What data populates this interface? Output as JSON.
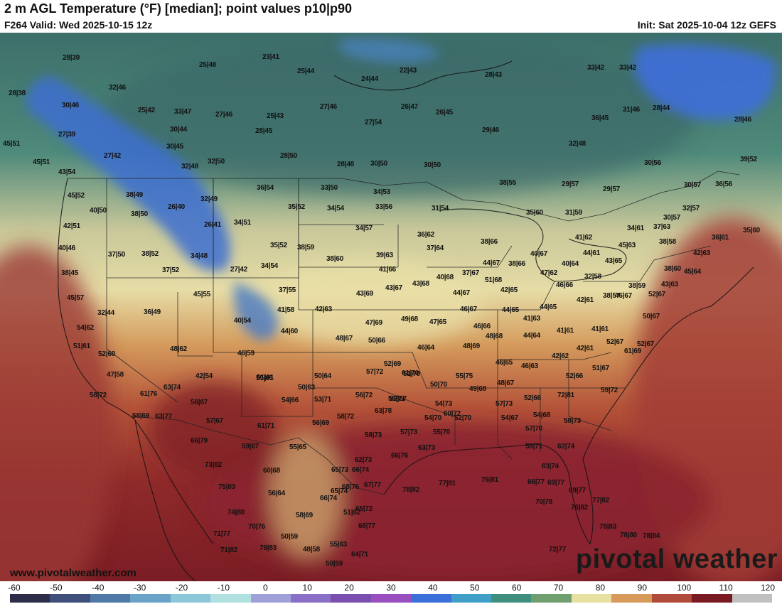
{
  "header": {
    "title": "2 m AGL Temperature (°F) [median]; point values p10|p90",
    "valid": "F264 Valid: Wed 2025-10-15 12z",
    "init": "Init: Sat 2025-10-04 12z GEFS"
  },
  "footer": {
    "website": "www.pivotalweather.com",
    "brand": "pivotal weather"
  },
  "colorbar": {
    "ticks": [
      "-60",
      "-50",
      "-40",
      "-30",
      "-20",
      "-10",
      "0",
      "10",
      "20",
      "30",
      "40",
      "50",
      "60",
      "70",
      "80",
      "90",
      "100",
      "110",
      "120"
    ],
    "range": [
      -60,
      120
    ],
    "colors": [
      "#2d2d4a",
      "#3d4f7a",
      "#4f7aa8",
      "#6aa3c8",
      "#8cc7d9",
      "#b0e0e0",
      "#a0a0d8",
      "#8a6fc8",
      "#7b4fb0",
      "#9a4fc0",
      "#3b6fd9",
      "#3f9fc9",
      "#3f8f7f",
      "#6f9f6f",
      "#e8e0a0",
      "#d89a5a",
      "#b04a3a",
      "#7a1a22",
      "#c0c0c0"
    ]
  },
  "point_values": [
    {
      "t": "28|39"
    },
    {
      "t": "25|48"
    },
    {
      "t": "23|41"
    },
    {
      "t": "28|38"
    },
    {
      "t": "32|46"
    },
    {
      "t": "25|44"
    },
    {
      "t": "22|43"
    },
    {
      "t": "28|43"
    },
    {
      "t": "33|42"
    },
    {
      "t": "33|42"
    },
    {
      "t": "24|44"
    },
    {
      "t": "30|46"
    },
    {
      "t": "25|42"
    },
    {
      "t": "33|47"
    },
    {
      "t": "27|46"
    },
    {
      "t": "25|43"
    },
    {
      "t": "27|46"
    },
    {
      "t": "26|47"
    },
    {
      "t": "26|45"
    },
    {
      "t": "31|46"
    },
    {
      "t": "28|44"
    },
    {
      "t": "27|54"
    },
    {
      "t": "36|45"
    },
    {
      "t": "28|46"
    },
    {
      "t": "27|39"
    },
    {
      "t": "30|44"
    },
    {
      "t": "28|45"
    },
    {
      "t": "29|46"
    },
    {
      "t": "45|51"
    },
    {
      "t": "30|45"
    },
    {
      "t": "32|48"
    },
    {
      "t": "27|42"
    },
    {
      "t": "28|50"
    },
    {
      "t": "45|51"
    },
    {
      "t": "32|48"
    },
    {
      "t": "32|50"
    },
    {
      "t": "28|48"
    },
    {
      "t": "30|50"
    },
    {
      "t": "30|50"
    },
    {
      "t": "30|56"
    },
    {
      "t": "39|52"
    },
    {
      "t": "43|54"
    },
    {
      "t": "38|55"
    },
    {
      "t": "29|57"
    },
    {
      "t": "29|57"
    },
    {
      "t": "30|57"
    },
    {
      "t": "36|56"
    },
    {
      "t": "36|54"
    },
    {
      "t": "33|50"
    },
    {
      "t": "30|57"
    },
    {
      "t": "45|52"
    },
    {
      "t": "38|49"
    },
    {
      "t": "32|49"
    },
    {
      "t": "34|53"
    },
    {
      "t": "35|52"
    },
    {
      "t": "34|54"
    },
    {
      "t": "33|56"
    },
    {
      "t": "31|54"
    },
    {
      "t": "32|57"
    },
    {
      "t": "40|50"
    },
    {
      "t": "38|50"
    },
    {
      "t": "26|40"
    },
    {
      "t": "35|60"
    },
    {
      "t": "31|59"
    },
    {
      "t": "34|61"
    },
    {
      "t": "37|63"
    },
    {
      "t": "35|60"
    },
    {
      "t": "42|51"
    },
    {
      "t": "26|41"
    },
    {
      "t": "34|51"
    },
    {
      "t": "34|57"
    },
    {
      "t": "36|62"
    },
    {
      "t": "41|62"
    },
    {
      "t": "36|61"
    },
    {
      "t": "38|58"
    },
    {
      "t": "40|46"
    },
    {
      "t": "38|66"
    },
    {
      "t": "45|63"
    },
    {
      "t": "35|52"
    },
    {
      "t": "38|59"
    },
    {
      "t": "37|64"
    },
    {
      "t": "37|50"
    },
    {
      "t": "38|52"
    },
    {
      "t": "34|48"
    },
    {
      "t": "39|63"
    },
    {
      "t": "40|67"
    },
    {
      "t": "44|61"
    },
    {
      "t": "42|63"
    },
    {
      "t": "38|60"
    },
    {
      "t": "43|65"
    },
    {
      "t": "44|67"
    },
    {
      "t": "38|66"
    },
    {
      "t": "40|64"
    },
    {
      "t": "38|45"
    },
    {
      "t": "37|52"
    },
    {
      "t": "27|42"
    },
    {
      "t": "34|54"
    },
    {
      "t": "41|66"
    },
    {
      "t": "40|68"
    },
    {
      "t": "37|67"
    },
    {
      "t": "47|62"
    },
    {
      "t": "38|60"
    },
    {
      "t": "45|64"
    },
    {
      "t": "43|68"
    },
    {
      "t": "51|68"
    },
    {
      "t": "32|58"
    },
    {
      "t": "43|63"
    },
    {
      "t": "45|55"
    },
    {
      "t": "37|55"
    },
    {
      "t": "43|69"
    },
    {
      "t": "43|67"
    },
    {
      "t": "44|67"
    },
    {
      "t": "42|65"
    },
    {
      "t": "46|66"
    },
    {
      "t": "38|59"
    },
    {
      "t": "45|57"
    },
    {
      "t": "38|57"
    },
    {
      "t": "52|67"
    },
    {
      "t": "42|61"
    },
    {
      "t": "46|67"
    },
    {
      "t": "44|65"
    },
    {
      "t": "44|65"
    },
    {
      "t": "32|44"
    },
    {
      "t": "36|49"
    },
    {
      "t": "41|58"
    },
    {
      "t": "42|63"
    },
    {
      "t": "46|67"
    },
    {
      "t": "50|67"
    },
    {
      "t": "40|54"
    },
    {
      "t": "47|69"
    },
    {
      "t": "49|68"
    },
    {
      "t": "47|65"
    },
    {
      "t": "41|63"
    },
    {
      "t": "46|66"
    },
    {
      "t": "54|62"
    },
    {
      "t": "44|60"
    },
    {
      "t": "41|61"
    },
    {
      "t": "41|61"
    },
    {
      "t": "52|67"
    },
    {
      "t": "48|67"
    },
    {
      "t": "50|66"
    },
    {
      "t": "48|68"
    },
    {
      "t": "44|64"
    },
    {
      "t": "51|61"
    },
    {
      "t": "52|67"
    },
    {
      "t": "48|62"
    },
    {
      "t": "46|64"
    },
    {
      "t": "48|69"
    },
    {
      "t": "42|61"
    },
    {
      "t": "61|69"
    },
    {
      "t": "52|60"
    },
    {
      "t": "46|59"
    },
    {
      "t": "46|65"
    },
    {
      "t": "42|62"
    },
    {
      "t": "52|69"
    },
    {
      "t": "61|70"
    },
    {
      "t": "46|63"
    },
    {
      "t": "51|67"
    },
    {
      "t": "47|58"
    },
    {
      "t": "42|54"
    },
    {
      "t": "50|64"
    },
    {
      "t": "57|72"
    },
    {
      "t": "51|70"
    },
    {
      "t": "55|75"
    },
    {
      "t": "52|66"
    },
    {
      "t": "55|65"
    },
    {
      "t": "51|61"
    },
    {
      "t": "50|63"
    },
    {
      "t": "50|70"
    },
    {
      "t": "48|67"
    },
    {
      "t": "63|74"
    },
    {
      "t": "49|68"
    },
    {
      "t": "59|72"
    },
    {
      "t": "58|72"
    },
    {
      "t": "61|76"
    },
    {
      "t": "56|72"
    },
    {
      "t": "52|67"
    },
    {
      "t": "72|81"
    },
    {
      "t": "56|67"
    },
    {
      "t": "54|66"
    },
    {
      "t": "53|71"
    },
    {
      "t": "55|71"
    },
    {
      "t": "52|66"
    },
    {
      "t": "58|69"
    },
    {
      "t": "63|77"
    },
    {
      "t": "63|78"
    },
    {
      "t": "54|73"
    },
    {
      "t": "57|73"
    },
    {
      "t": "60|72"
    },
    {
      "t": "58|72"
    },
    {
      "t": "54|70"
    },
    {
      "t": "52|70"
    },
    {
      "t": "54|67"
    },
    {
      "t": "54|68"
    },
    {
      "t": "57|67"
    },
    {
      "t": "61|71"
    },
    {
      "t": "56|69"
    },
    {
      "t": "58|73"
    },
    {
      "t": "57|73"
    },
    {
      "t": "55|70"
    },
    {
      "t": "58|73"
    },
    {
      "t": "57|70"
    },
    {
      "t": "66|79"
    },
    {
      "t": "59|67"
    },
    {
      "t": "55|65"
    },
    {
      "t": "63|73"
    },
    {
      "t": "59|71"
    },
    {
      "t": "62|74"
    },
    {
      "t": "66|76"
    },
    {
      "t": "65|73"
    },
    {
      "t": "66|74"
    },
    {
      "t": "73|82"
    },
    {
      "t": "62|73"
    },
    {
      "t": "60|68"
    },
    {
      "t": "65|74"
    },
    {
      "t": "63|74"
    },
    {
      "t": "75|83"
    },
    {
      "t": "56|64"
    },
    {
      "t": "68|76"
    },
    {
      "t": "67|77"
    },
    {
      "t": "77|81"
    },
    {
      "t": "76|81"
    },
    {
      "t": "66|77"
    },
    {
      "t": "78|82"
    },
    {
      "t": "69|77"
    },
    {
      "t": "69|77"
    },
    {
      "t": "66|74"
    },
    {
      "t": "74|80"
    },
    {
      "t": "70|78"
    },
    {
      "t": "77|82"
    },
    {
      "t": "65|72"
    },
    {
      "t": "51|62"
    },
    {
      "t": "58|69"
    },
    {
      "t": "76|82"
    },
    {
      "t": "78|80"
    },
    {
      "t": "70|76"
    },
    {
      "t": "68|77"
    },
    {
      "t": "78|83"
    },
    {
      "t": "71|77"
    },
    {
      "t": "50|59"
    },
    {
      "t": "55|63"
    },
    {
      "t": "78|84"
    },
    {
      "t": "71|82"
    },
    {
      "t": "79|83"
    },
    {
      "t": "48|58"
    },
    {
      "t": "64|71"
    },
    {
      "t": "72|77"
    },
    {
      "t": "50|59"
    }
  ]
}
